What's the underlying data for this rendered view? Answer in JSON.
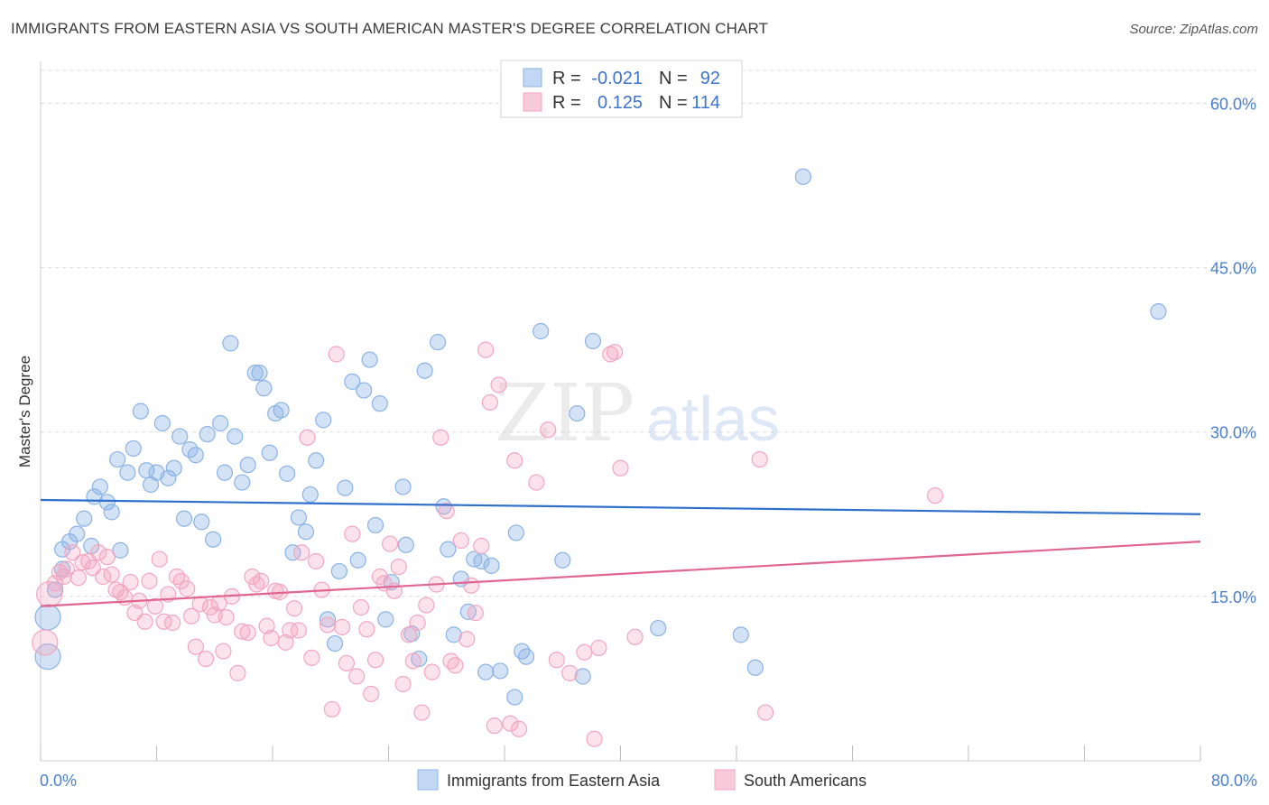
{
  "header": {
    "title": "IMMIGRANTS FROM EASTERN ASIA VS SOUTH AMERICAN MASTER'S DEGREE CORRELATION CHART",
    "source": "Source: ZipAtlas.com"
  },
  "watermark": {
    "zip": "ZIP",
    "atlas": "atlas"
  },
  "chart_data": {
    "type": "scatter",
    "title": "IMMIGRANTS FROM EASTERN ASIA VS SOUTH AMERICAN MASTER'S DEGREE CORRELATION CHART",
    "ylabel": "Master's Degree",
    "xlabel": "",
    "xlim": [
      0,
      80
    ],
    "ylim": [
      0,
      63
    ],
    "x_tick_labels": [
      "0.0%",
      "80.0%"
    ],
    "y_ticks": [
      15,
      30,
      45,
      60
    ],
    "y_tick_labels": [
      "15.0%",
      "30.0%",
      "45.0%",
      "60.0%"
    ],
    "grid": true,
    "legend_placement": "top-center",
    "stats_legend": [
      {
        "r_label": "R =",
        "r_value": "-0.021",
        "n_label": "N =",
        "n_value": "92"
      },
      {
        "r_label": "R =",
        "r_value": "0.125",
        "n_label": "N =",
        "n_value": "114"
      }
    ],
    "series": [
      {
        "name": "Immigrants from Eastern Asia",
        "color": "#8bb3e6",
        "line_color": "#2f6fcc",
        "trend": [
          [
            0,
            23.8
          ],
          [
            80,
            22.5
          ]
        ],
        "points": [
          [
            0.5,
            9.5
          ],
          [
            0.5,
            13.1
          ],
          [
            1.0,
            15.6
          ],
          [
            1.5,
            19.3
          ],
          [
            1.5,
            17.5
          ],
          [
            2.0,
            20.0
          ],
          [
            2.5,
            20.7
          ],
          [
            3.0,
            22.1
          ],
          [
            3.5,
            19.6
          ],
          [
            3.7,
            24.1
          ],
          [
            4.1,
            25.0
          ],
          [
            4.6,
            23.6
          ],
          [
            4.9,
            22.7
          ],
          [
            5.3,
            27.5
          ],
          [
            5.5,
            19.2
          ],
          [
            6.0,
            26.3
          ],
          [
            6.4,
            28.5
          ],
          [
            6.9,
            31.9
          ],
          [
            7.3,
            26.5
          ],
          [
            7.6,
            25.2
          ],
          [
            8.0,
            26.3
          ],
          [
            8.4,
            30.8
          ],
          [
            8.8,
            25.8
          ],
          [
            9.2,
            26.7
          ],
          [
            9.6,
            29.6
          ],
          [
            9.9,
            22.1
          ],
          [
            10.3,
            28.4
          ],
          [
            10.7,
            27.9
          ],
          [
            11.1,
            21.8
          ],
          [
            11.5,
            29.8
          ],
          [
            11.9,
            20.2
          ],
          [
            12.4,
            30.8
          ],
          [
            12.7,
            26.3
          ],
          [
            13.1,
            38.1
          ],
          [
            13.4,
            29.6
          ],
          [
            13.9,
            25.4
          ],
          [
            14.3,
            27.0
          ],
          [
            14.8,
            35.4
          ],
          [
            15.1,
            35.4
          ],
          [
            15.4,
            34.0
          ],
          [
            15.8,
            28.1
          ],
          [
            16.2,
            31.7
          ],
          [
            16.6,
            32.0
          ],
          [
            17.0,
            26.2
          ],
          [
            17.4,
            19.0
          ],
          [
            17.8,
            22.2
          ],
          [
            18.3,
            20.9
          ],
          [
            18.6,
            24.3
          ],
          [
            19.0,
            27.4
          ],
          [
            19.5,
            31.1
          ],
          [
            19.8,
            12.9
          ],
          [
            20.3,
            10.7
          ],
          [
            20.6,
            17.3
          ],
          [
            21.0,
            24.9
          ],
          [
            21.5,
            34.6
          ],
          [
            21.9,
            18.3
          ],
          [
            22.3,
            33.8
          ],
          [
            22.7,
            36.6
          ],
          [
            23.1,
            21.5
          ],
          [
            23.4,
            32.6
          ],
          [
            23.8,
            12.9
          ],
          [
            24.2,
            16.3
          ],
          [
            25.0,
            25.0
          ],
          [
            25.2,
            19.7
          ],
          [
            25.6,
            11.6
          ],
          [
            26.1,
            9.3
          ],
          [
            26.5,
            35.6
          ],
          [
            27.4,
            38.2
          ],
          [
            27.8,
            23.2
          ],
          [
            28.1,
            19.3
          ],
          [
            28.5,
            11.5
          ],
          [
            29.0,
            16.6
          ],
          [
            29.5,
            13.6
          ],
          [
            29.9,
            18.4
          ],
          [
            30.4,
            18.2
          ],
          [
            30.7,
            8.1
          ],
          [
            31.1,
            17.8
          ],
          [
            31.7,
            8.2
          ],
          [
            32.7,
            5.8
          ],
          [
            32.8,
            20.8
          ],
          [
            33.2,
            10.0
          ],
          [
            33.5,
            9.5
          ],
          [
            34.5,
            39.2
          ],
          [
            36.0,
            18.3
          ],
          [
            37.0,
            31.7
          ],
          [
            37.4,
            7.7
          ],
          [
            38.1,
            38.3
          ],
          [
            42.6,
            12.1
          ],
          [
            48.3,
            11.5
          ],
          [
            49.3,
            8.5
          ],
          [
            52.6,
            53.3
          ],
          [
            77.1,
            41.0
          ]
        ]
      },
      {
        "name": "South Americans",
        "color": "#f3a6c0",
        "line_color": "#e06590",
        "trend": [
          [
            0,
            14.1
          ],
          [
            80,
            20.0
          ]
        ],
        "points": [
          [
            0.3,
            10.8
          ],
          [
            0.6,
            15.2
          ],
          [
            1.0,
            16.2
          ],
          [
            1.3,
            17.2
          ],
          [
            1.6,
            16.8
          ],
          [
            1.8,
            17.5
          ],
          [
            2.2,
            19.0
          ],
          [
            2.6,
            16.7
          ],
          [
            2.9,
            18.1
          ],
          [
            3.3,
            18.2
          ],
          [
            3.6,
            17.6
          ],
          [
            4.0,
            19.0
          ],
          [
            4.3,
            16.8
          ],
          [
            4.6,
            18.6
          ],
          [
            4.9,
            17.0
          ],
          [
            5.2,
            15.6
          ],
          [
            5.5,
            15.4
          ],
          [
            5.8,
            14.9
          ],
          [
            6.2,
            16.3
          ],
          [
            6.5,
            13.5
          ],
          [
            6.8,
            14.6
          ],
          [
            7.2,
            12.7
          ],
          [
            7.5,
            16.4
          ],
          [
            7.9,
            14.1
          ],
          [
            8.2,
            18.4
          ],
          [
            8.5,
            12.7
          ],
          [
            8.8,
            15.2
          ],
          [
            9.1,
            12.6
          ],
          [
            9.4,
            16.8
          ],
          [
            9.7,
            16.4
          ],
          [
            10.1,
            15.7
          ],
          [
            10.4,
            13.2
          ],
          [
            10.7,
            10.4
          ],
          [
            11.0,
            14.3
          ],
          [
            11.4,
            9.3
          ],
          [
            11.7,
            14.0
          ],
          [
            12.0,
            13.3
          ],
          [
            12.3,
            14.4
          ],
          [
            12.6,
            10.0
          ],
          [
            12.8,
            13.1
          ],
          [
            13.2,
            15.0
          ],
          [
            13.6,
            8.0
          ],
          [
            13.9,
            11.8
          ],
          [
            14.3,
            11.7
          ],
          [
            14.6,
            16.8
          ],
          [
            14.9,
            16.1
          ],
          [
            15.2,
            16.4
          ],
          [
            15.6,
            12.3
          ],
          [
            15.9,
            11.2
          ],
          [
            16.2,
            15.5
          ],
          [
            16.5,
            15.4
          ],
          [
            16.9,
            10.8
          ],
          [
            17.2,
            11.9
          ],
          [
            17.5,
            13.9
          ],
          [
            17.8,
            11.9
          ],
          [
            18.0,
            19.0
          ],
          [
            18.4,
            29.5
          ],
          [
            18.7,
            9.4
          ],
          [
            19.0,
            18.2
          ],
          [
            19.4,
            15.6
          ],
          [
            19.8,
            12.4
          ],
          [
            20.1,
            4.7
          ],
          [
            20.4,
            37.1
          ],
          [
            20.8,
            12.2
          ],
          [
            21.1,
            8.9
          ],
          [
            21.5,
            20.7
          ],
          [
            21.8,
            7.7
          ],
          [
            22.1,
            14.0
          ],
          [
            22.5,
            12.0
          ],
          [
            22.8,
            6.1
          ],
          [
            23.1,
            9.2
          ],
          [
            23.4,
            16.8
          ],
          [
            23.7,
            16.2
          ],
          [
            24.1,
            19.8
          ],
          [
            24.4,
            15.5
          ],
          [
            24.7,
            17.7
          ],
          [
            25.0,
            7.0
          ],
          [
            25.4,
            11.5
          ],
          [
            25.7,
            9.1
          ],
          [
            26.0,
            12.6
          ],
          [
            26.3,
            4.4
          ],
          [
            26.6,
            14.2
          ],
          [
            27.0,
            8.1
          ],
          [
            27.3,
            16.1
          ],
          [
            27.6,
            29.5
          ],
          [
            28.0,
            22.8
          ],
          [
            28.3,
            9.1
          ],
          [
            28.6,
            8.7
          ],
          [
            29.0,
            20.1
          ],
          [
            29.4,
            11.1
          ],
          [
            29.7,
            16.0
          ],
          [
            30.0,
            13.5
          ],
          [
            30.4,
            19.6
          ],
          [
            30.7,
            37.5
          ],
          [
            31.0,
            32.7
          ],
          [
            31.3,
            3.2
          ],
          [
            31.6,
            34.3
          ],
          [
            32.4,
            3.4
          ],
          [
            32.7,
            27.4
          ],
          [
            33.0,
            2.9
          ],
          [
            34.2,
            25.4
          ],
          [
            35.0,
            30.2
          ],
          [
            35.6,
            9.2
          ],
          [
            36.5,
            8.0
          ],
          [
            37.5,
            9.9
          ],
          [
            38.2,
            2.0
          ],
          [
            38.5,
            10.3
          ],
          [
            39.3,
            37.1
          ],
          [
            39.6,
            37.3
          ],
          [
            40.0,
            26.7
          ],
          [
            41.0,
            11.3
          ],
          [
            49.6,
            27.5
          ],
          [
            50.0,
            4.4
          ],
          [
            61.7,
            24.2
          ]
        ]
      }
    ]
  }
}
